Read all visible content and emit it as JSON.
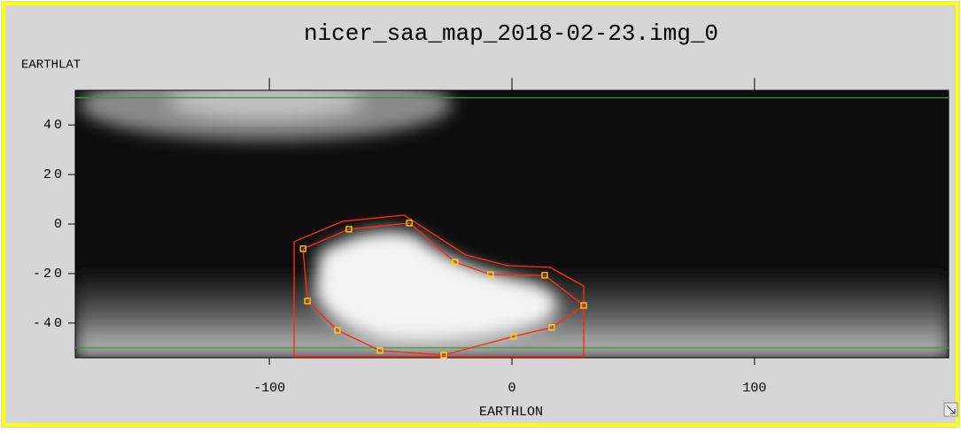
{
  "chart_data": {
    "type": "polygon",
    "title": "nicer_saa_map_2018-02-23.img_0",
    "x_label": "EARTHLON",
    "y_label": "EARTHLAT",
    "xlim": [
      -180,
      180
    ],
    "ylim": [
      -54,
      54
    ],
    "xticks": [
      -100,
      0,
      100
    ],
    "yticks": [
      -40,
      -20,
      0,
      20,
      40
    ],
    "boundaries": {
      "color": "#2e9e2e",
      "values": [
        51,
        -50
      ]
    },
    "series": [
      {
        "color": "#ff2a10",
        "x": [
          -89.8,
          -69.7,
          -44.5,
          -19,
          -1.8,
          15.7,
          29.6,
          29.6,
          -89.8
        ],
        "y": [
          -7.1,
          1.1,
          3.6,
          -12.5,
          -16.8,
          -17.5,
          -25,
          -53.6,
          -53.6
        ]
      },
      {
        "color": "#ff2a10",
        "marker_color": "#ffd800",
        "x": [
          -86.1,
          -67.2,
          -42.3,
          -23.4,
          -8.8,
          13.5,
          29.6,
          16.4,
          0.7,
          -28.1,
          -54.4,
          -71.9,
          -84.3
        ],
        "y": [
          -10,
          -2.1,
          0.4,
          -15.4,
          -20.4,
          -20.7,
          -32.9,
          -41.8,
          -45.4,
          -52.9,
          -51.1,
          -42.9,
          -31.1
        ]
      }
    ]
  }
}
